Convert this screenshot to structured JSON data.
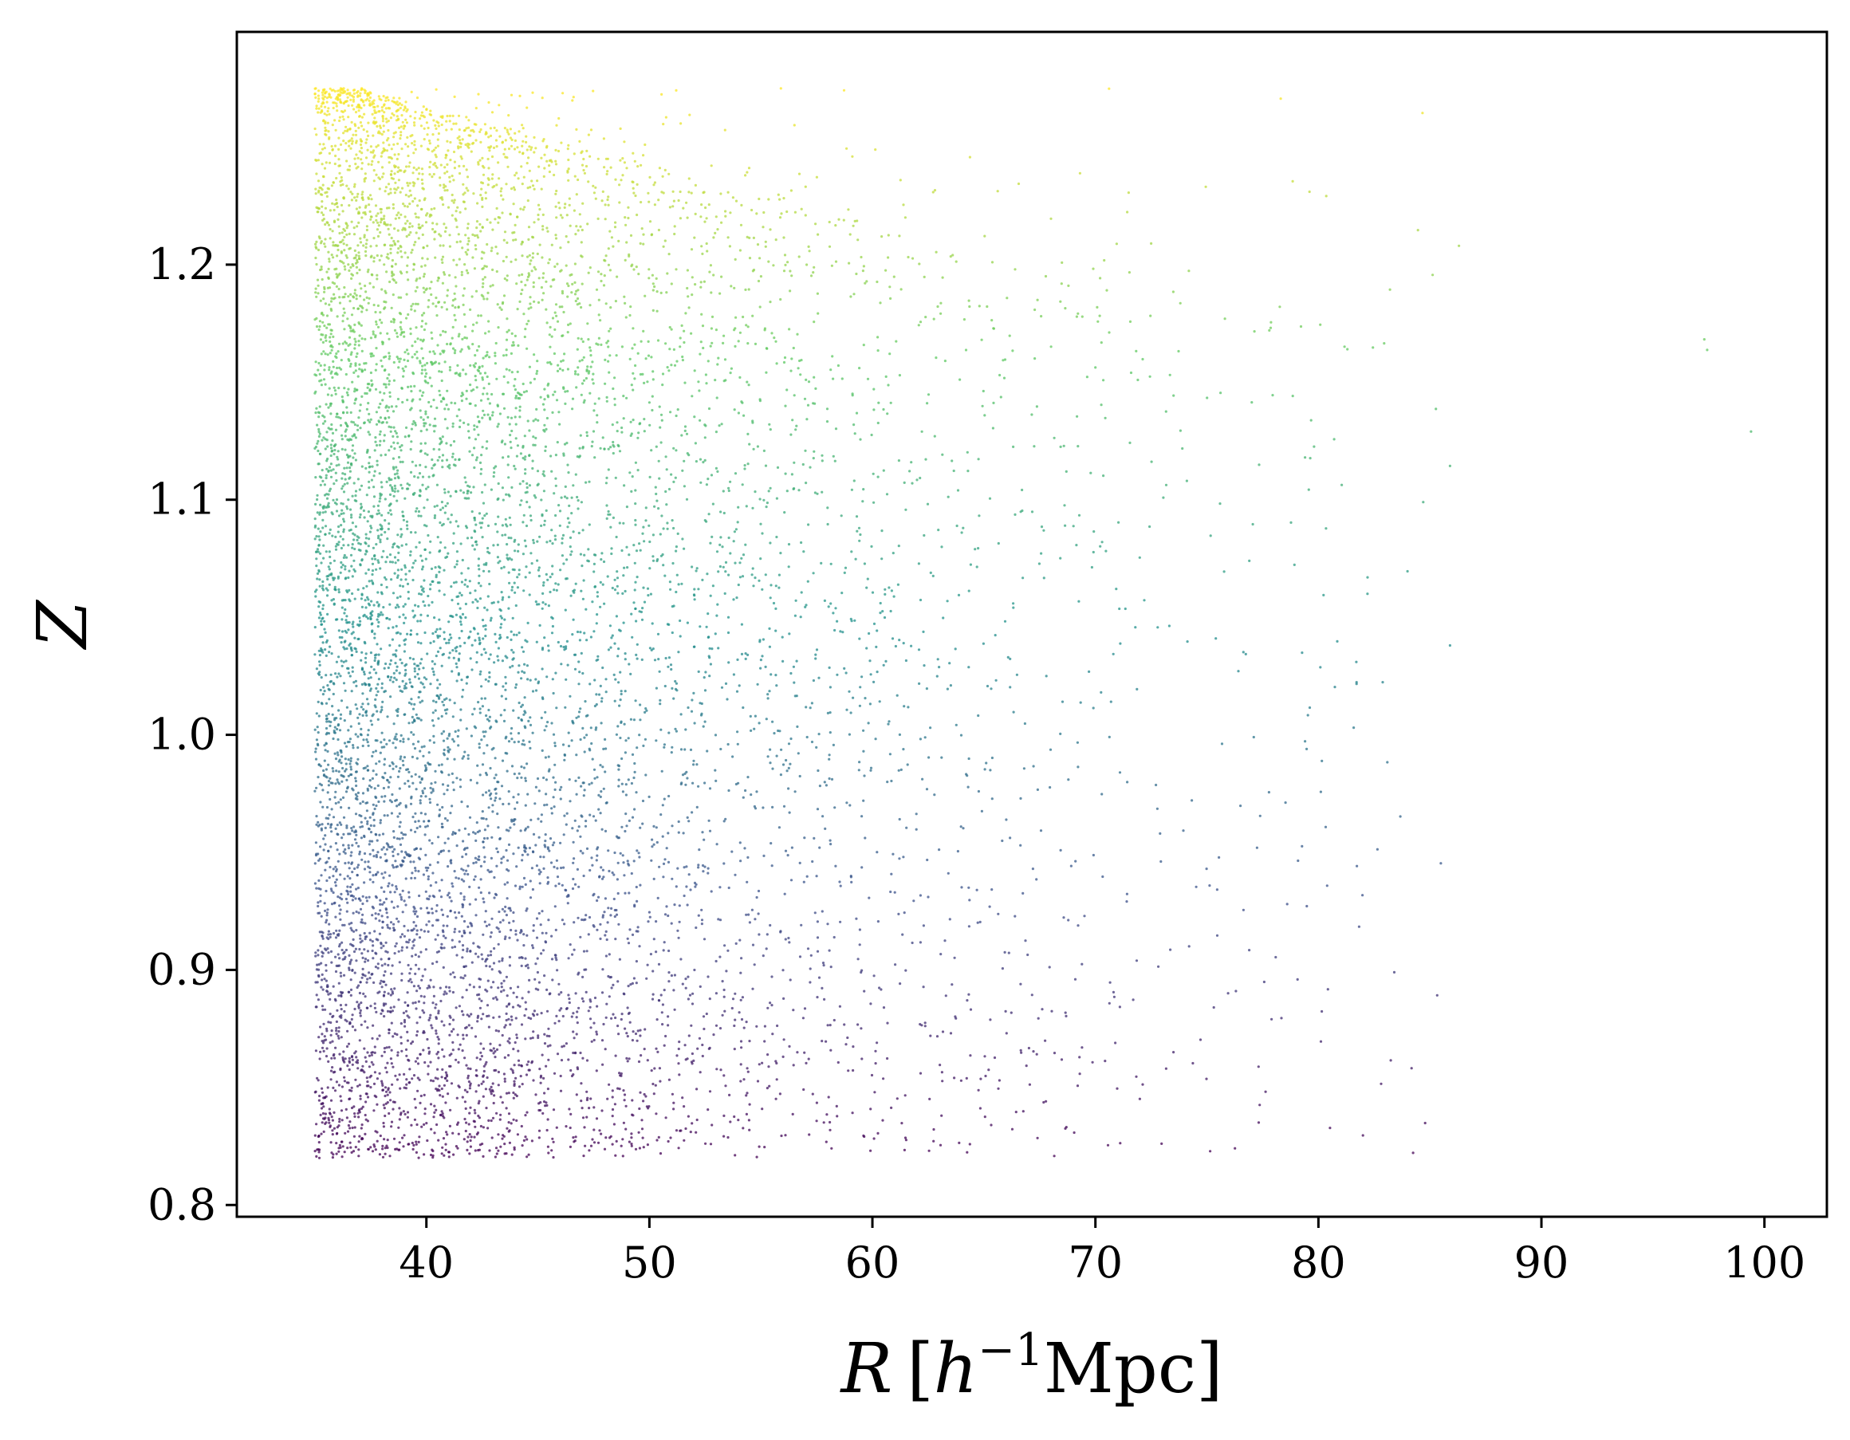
{
  "chart_data": {
    "type": "scatter",
    "xlabel_parts": {
      "var": "R",
      "open": "[",
      "h": "h",
      "exp": "−1",
      "unit": "Mpc",
      "close": "]"
    },
    "ylabel": "Z",
    "xlim": [
      31.5,
      102.8
    ],
    "ylim": [
      0.795,
      1.299
    ],
    "x_ticks": [
      40,
      50,
      60,
      70,
      80,
      90,
      100
    ],
    "x_tick_labels": [
      "40",
      "50",
      "60",
      "70",
      "80",
      "90",
      "100"
    ],
    "y_ticks": [
      0.8,
      0.9,
      1.0,
      1.1,
      1.2
    ],
    "y_tick_labels": [
      "0.8",
      "0.9",
      "1.0",
      "1.1",
      "1.2"
    ],
    "colormap": "viridis",
    "color_by": "Z",
    "color_range": [
      0.82,
      1.275
    ],
    "colormap_stops": [
      "#440154",
      "#3b528b",
      "#21918c",
      "#5ec962",
      "#fde725"
    ],
    "grid": false,
    "legend": false,
    "n_points_approx": 9000,
    "points": [
      [
        35.2,
        0.82
      ],
      [
        36.8,
        0.833
      ],
      [
        38.1,
        0.828
      ],
      [
        40.3,
        0.821
      ],
      [
        42.5,
        0.826
      ],
      [
        44.1,
        0.83
      ],
      [
        46.7,
        0.829
      ],
      [
        49.2,
        0.826
      ],
      [
        52.8,
        0.834
      ],
      [
        58.4,
        0.842
      ],
      [
        63.1,
        0.838
      ],
      [
        35.6,
        0.861
      ],
      [
        37.9,
        0.872
      ],
      [
        41.2,
        0.866
      ],
      [
        44.8,
        0.853
      ],
      [
        48.9,
        0.875
      ],
      [
        55.3,
        0.864
      ],
      [
        60.2,
        0.869
      ],
      [
        65.7,
        0.853
      ],
      [
        69.4,
        0.867
      ],
      [
        73.5,
        0.865
      ],
      [
        77.9,
        0.879
      ],
      [
        36.1,
        0.905
      ],
      [
        39.4,
        0.912
      ],
      [
        43.6,
        0.897
      ],
      [
        47.2,
        0.908
      ],
      [
        51.5,
        0.894
      ],
      [
        57.8,
        0.903
      ],
      [
        63.3,
        0.889
      ],
      [
        69.1,
        0.896
      ],
      [
        74.2,
        0.91
      ],
      [
        76.3,
        0.891
      ],
      [
        83.4,
        0.899
      ],
      [
        35.4,
        0.951
      ],
      [
        38.7,
        0.944
      ],
      [
        42.2,
        0.958
      ],
      [
        46.1,
        0.936
      ],
      [
        50.7,
        0.947
      ],
      [
        56.4,
        0.952
      ],
      [
        62.5,
        0.931
      ],
      [
        67.2,
        0.943
      ],
      [
        72.9,
        0.958
      ],
      [
        78.6,
        0.928
      ],
      [
        35.9,
        0.992
      ],
      [
        39.8,
        0.981
      ],
      [
        44.3,
        0.996
      ],
      [
        48.6,
        0.987
      ],
      [
        53.9,
        0.979
      ],
      [
        59.6,
        0.993
      ],
      [
        65.1,
        0.988
      ],
      [
        71.1,
        0.984
      ],
      [
        77.1,
        0.999
      ],
      [
        36.3,
        1.031
      ],
      [
        40.6,
        1.042
      ],
      [
        45.2,
        1.028
      ],
      [
        50.1,
        1.036
      ],
      [
        55.7,
        1.021
      ],
      [
        61.4,
        1.039
      ],
      [
        67.8,
        1.025
      ],
      [
        75.4,
        1.041
      ],
      [
        81.7,
        1.031
      ],
      [
        85.9,
        1.038
      ],
      [
        35.7,
        1.073
      ],
      [
        39.1,
        1.081
      ],
      [
        43.7,
        1.069
      ],
      [
        48.3,
        1.077
      ],
      [
        53.2,
        1.084
      ],
      [
        58.8,
        1.071
      ],
      [
        64.6,
        1.079
      ],
      [
        70.3,
        1.082
      ],
      [
        76.9,
        1.074
      ],
      [
        82.2,
        1.06
      ],
      [
        36.5,
        1.118
      ],
      [
        40.9,
        1.124
      ],
      [
        45.8,
        1.109
      ],
      [
        51.2,
        1.121
      ],
      [
        56.9,
        1.115
      ],
      [
        62.8,
        1.127
      ],
      [
        68.7,
        1.112
      ],
      [
        74.1,
        1.108
      ],
      [
        79.4,
        1.118
      ],
      [
        84.7,
        1.099
      ],
      [
        99.4,
        1.129
      ],
      [
        35.3,
        1.162
      ],
      [
        38.9,
        1.171
      ],
      [
        43.1,
        1.158
      ],
      [
        47.7,
        1.166
      ],
      [
        52.4,
        1.174
      ],
      [
        58.2,
        1.161
      ],
      [
        64.9,
        1.168
      ],
      [
        71.6,
        1.154
      ],
      [
        77.8,
        1.172
      ],
      [
        81.3,
        1.164
      ],
      [
        36.2,
        1.205
      ],
      [
        40.4,
        1.214
      ],
      [
        44.9,
        1.198
      ],
      [
        49.6,
        1.209
      ],
      [
        55.1,
        1.216
      ],
      [
        60.7,
        1.203
      ],
      [
        66.4,
        1.198
      ],
      [
        72.5,
        1.209
      ],
      [
        79.6,
        1.231
      ],
      [
        86.3,
        1.208
      ],
      [
        35.8,
        1.249
      ],
      [
        38.2,
        1.262
      ],
      [
        41.7,
        1.257
      ],
      [
        45.4,
        1.244
      ],
      [
        49.8,
        1.251
      ],
      [
        54.3,
        1.238
      ],
      [
        59.1,
        1.246
      ],
      [
        37.1,
        1.275
      ],
      [
        39.6,
        1.271
      ],
      [
        42.8,
        1.269
      ]
    ]
  }
}
